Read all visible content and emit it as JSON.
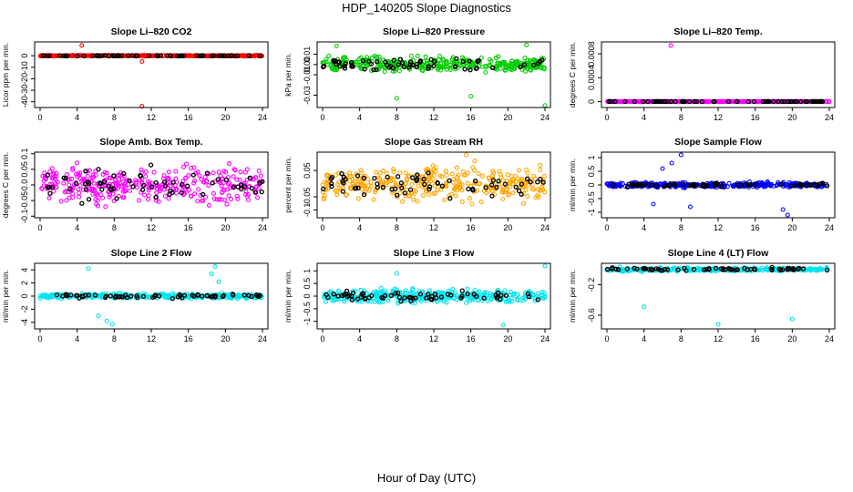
{
  "title": "HDP_140205  Slope Diagnostics",
  "xlabel": "Hour of Day (UTC)",
  "chart_data": [
    {
      "type": "scatter",
      "title": "Slope Li–820 CO2",
      "ylabel": "Licor ppm per min.",
      "color": "#ff0000",
      "xlim": [
        0,
        24
      ],
      "ylim": [
        -45,
        12
      ],
      "xticks": [
        0,
        4,
        8,
        12,
        16,
        20,
        24
      ],
      "yticks": [
        0,
        -10,
        -20,
        -30,
        -40
      ],
      "spread": 0.6,
      "outliers": [
        [
          4.5,
          9
        ],
        [
          11,
          -5
        ],
        [
          11,
          -44
        ]
      ]
    },
    {
      "type": "scatter",
      "title": "Slope Li–820 Pressure",
      "ylabel": "kPa per min.",
      "color": "#00cc00",
      "xlim": [
        0,
        24
      ],
      "ylim": [
        -0.042,
        0.022
      ],
      "xticks": [
        0,
        4,
        8,
        12,
        16,
        20,
        24
      ],
      "yticks": [
        0.01,
        0.0,
        -0.01,
        -0.03
      ],
      "spread": 0.012,
      "outliers": [
        [
          8,
          -0.033
        ],
        [
          16,
          -0.031
        ],
        [
          24,
          -0.04
        ],
        [
          1.5,
          0.018
        ],
        [
          22,
          0.019
        ]
      ]
    },
    {
      "type": "scatter",
      "title": "Slope Li–820 Temp.",
      "ylabel": "degrees C per min.",
      "color": "#ff00ff",
      "xlim": [
        0,
        24
      ],
      "ylim": [
        -0.0001,
        0.001
      ],
      "xticks": [
        0,
        4,
        8,
        12,
        16,
        20,
        24
      ],
      "yticks": [
        0.0,
        0.0004,
        0.0008
      ],
      "spread": 0.0,
      "outliers": [
        [
          6.9,
          0.00094
        ]
      ]
    },
    {
      "type": "scatter",
      "title": "Slope Amb. Box Temp.",
      "ylabel": "degrees C per min.",
      "color": "#ff00ff",
      "xlim": [
        0,
        24
      ],
      "ylim": [
        -0.105,
        0.105
      ],
      "xticks": [
        0,
        4,
        8,
        12,
        16,
        20,
        24
      ],
      "yticks": [
        -0.1,
        -0.05,
        0.0,
        0.05,
        0.1
      ],
      "spread": 0.1,
      "outliers": []
    },
    {
      "type": "scatter",
      "title": "Slope Gas Stream RH",
      "ylabel": "percent per min.",
      "color": "#ffa500",
      "xlim": [
        0,
        24
      ],
      "ylim": [
        -0.13,
        0.12
      ],
      "xticks": [
        0,
        4,
        8,
        12,
        16,
        20,
        24
      ],
      "yticks": [
        0.05,
        -0.05,
        -0.1
      ],
      "spread": 0.11,
      "outliers": [
        [
          15.5,
          0.11
        ]
      ]
    },
    {
      "type": "scatter",
      "title": "Slope Sample Flow",
      "ylabel": "ml/min per min.",
      "color": "#0000ff",
      "xlim": [
        0,
        24
      ],
      "ylim": [
        -1.2,
        1.2
      ],
      "xticks": [
        0,
        4,
        8,
        12,
        16,
        20,
        24
      ],
      "yticks": [
        -1.0,
        -0.5,
        0.0,
        0.5,
        1.0
      ],
      "spread": 0.15,
      "outliers": [
        [
          8,
          1.1
        ],
        [
          7,
          0.8
        ],
        [
          6,
          0.6
        ],
        [
          19.5,
          -1.1
        ],
        [
          19,
          -0.9
        ],
        [
          5,
          -0.7
        ],
        [
          9,
          -0.8
        ]
      ]
    },
    {
      "type": "scatter",
      "title": "Slope Line 2 Flow",
      "ylabel": "ml/min per min.",
      "color": "#00e5ee",
      "xlim": [
        0,
        24
      ],
      "ylim": [
        -5,
        5
      ],
      "xticks": [
        0,
        4,
        8,
        12,
        16,
        20,
        24
      ],
      "yticks": [
        -4,
        -2,
        0,
        2,
        4
      ],
      "spread": 0.6,
      "outliers": [
        [
          5.2,
          4.2
        ],
        [
          7.8,
          -4.3
        ],
        [
          6.3,
          -3
        ],
        [
          7.2,
          -3.8
        ],
        [
          18.9,
          4.5
        ],
        [
          18.5,
          3.4
        ],
        [
          19.3,
          2.2
        ]
      ]
    },
    {
      "type": "scatter",
      "title": "Slope Line 3 Flow",
      "ylabel": "ml/min per min.",
      "color": "#00e5ee",
      "xlim": [
        0,
        24
      ],
      "ylim": [
        -1.3,
        1.3
      ],
      "xticks": [
        0,
        4,
        8,
        12,
        16,
        20,
        24
      ],
      "yticks": [
        -1.0,
        -0.5,
        0.0,
        0.5,
        1.0
      ],
      "spread": 0.45,
      "outliers": [
        [
          24,
          1.2
        ],
        [
          19.5,
          -1.15
        ],
        [
          8,
          0.9
        ]
      ]
    },
    {
      "type": "scatter",
      "title": "Slope Line 4 (LT) Flow",
      "ylabel": "ml/min per min.",
      "color": "#00e5ee",
      "xlim": [
        0,
        24
      ],
      "ylim": [
        -0.78,
        0.08
      ],
      "xticks": [
        0,
        4,
        8,
        12,
        16,
        20,
        24
      ],
      "yticks": [
        -0.2,
        -0.6
      ],
      "spread": 0.04,
      "outliers": [
        [
          4,
          -0.49
        ],
        [
          12,
          -0.72
        ],
        [
          20,
          -0.65
        ]
      ]
    }
  ]
}
